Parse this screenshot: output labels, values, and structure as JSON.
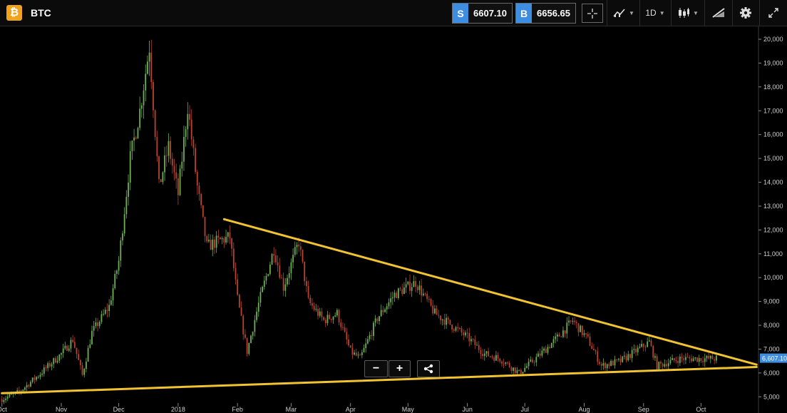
{
  "header": {
    "logo_glyph": "₿",
    "symbol": "BTC",
    "sell": {
      "tag": "S",
      "price": "6607.10"
    },
    "buy": {
      "tag": "B",
      "price": "6656.65"
    },
    "interval": "1D"
  },
  "controls": {
    "zoom_out": "−",
    "zoom_in": "+"
  },
  "colors": {
    "up": "#6fae55",
    "down": "#b8432f",
    "trendline": "#f1c232",
    "price_tag": "#3d8ee0"
  },
  "chart_data": {
    "type": "candlestick",
    "x_tick_labels": [
      "Oct",
      "Nov",
      "Dec",
      "2018",
      "Feb",
      "Mar",
      "Apr",
      "May",
      "Jun",
      "Jul",
      "Aug",
      "Sep",
      "Oct"
    ],
    "y_tick_labels": [
      "5,000",
      "6,000",
      "7,000",
      "8,000",
      "9,000",
      "10,000",
      "11,000",
      "12,000",
      "13,000",
      "14,000",
      "15,000",
      "16,000",
      "17,000",
      "18,000",
      "19,000",
      "20,000"
    ],
    "ylim": [
      4500,
      20300
    ],
    "grid": false,
    "last_price_label": "6,607.10",
    "close_series": [
      {
        "x": "2017-10-01",
        "y": 4900
      },
      {
        "x": "2017-10-10",
        "y": 5200
      },
      {
        "x": "2017-10-20",
        "y": 5900
      },
      {
        "x": "2017-11-01",
        "y": 6800
      },
      {
        "x": "2017-11-07",
        "y": 7400
      },
      {
        "x": "2017-11-12",
        "y": 5900
      },
      {
        "x": "2017-11-17",
        "y": 7700
      },
      {
        "x": "2017-11-26",
        "y": 8800
      },
      {
        "x": "2017-12-01",
        "y": 10700
      },
      {
        "x": "2017-12-07",
        "y": 15000
      },
      {
        "x": "2017-12-12",
        "y": 17000
      },
      {
        "x": "2017-12-17",
        "y": 19700
      },
      {
        "x": "2017-12-22",
        "y": 13800
      },
      {
        "x": "2017-12-27",
        "y": 15500
      },
      {
        "x": "2018-01-01",
        "y": 13500
      },
      {
        "x": "2018-01-06",
        "y": 17200
      },
      {
        "x": "2018-01-11",
        "y": 13800
      },
      {
        "x": "2018-01-16",
        "y": 11300
      },
      {
        "x": "2018-01-21",
        "y": 11500
      },
      {
        "x": "2018-01-28",
        "y": 11700
      },
      {
        "x": "2018-02-01",
        "y": 9100
      },
      {
        "x": "2018-02-06",
        "y": 6900
      },
      {
        "x": "2018-02-12",
        "y": 8900
      },
      {
        "x": "2018-02-20",
        "y": 11200
      },
      {
        "x": "2018-02-25",
        "y": 9600
      },
      {
        "x": "2018-03-05",
        "y": 11500
      },
      {
        "x": "2018-03-10",
        "y": 9000
      },
      {
        "x": "2018-03-18",
        "y": 8200
      },
      {
        "x": "2018-03-25",
        "y": 8500
      },
      {
        "x": "2018-04-01",
        "y": 6900
      },
      {
        "x": "2018-04-06",
        "y": 6600
      },
      {
        "x": "2018-04-15",
        "y": 8300
      },
      {
        "x": "2018-04-24",
        "y": 9300
      },
      {
        "x": "2018-05-05",
        "y": 9800
      },
      {
        "x": "2018-05-15",
        "y": 8500
      },
      {
        "x": "2018-05-22",
        "y": 8100
      },
      {
        "x": "2018-06-01",
        "y": 7500
      },
      {
        "x": "2018-06-10",
        "y": 6800
      },
      {
        "x": "2018-06-18",
        "y": 6600
      },
      {
        "x": "2018-06-28",
        "y": 6000
      },
      {
        "x": "2018-07-08",
        "y": 6700
      },
      {
        "x": "2018-07-17",
        "y": 7400
      },
      {
        "x": "2018-07-26",
        "y": 8200
      },
      {
        "x": "2018-08-03",
        "y": 7400
      },
      {
        "x": "2018-08-10",
        "y": 6300
      },
      {
        "x": "2018-08-20",
        "y": 6500
      },
      {
        "x": "2018-09-04",
        "y": 7300
      },
      {
        "x": "2018-09-08",
        "y": 6300
      },
      {
        "x": "2018-09-20",
        "y": 6600
      },
      {
        "x": "2018-10-01",
        "y": 6600
      },
      {
        "x": "2018-10-09",
        "y": 6607
      }
    ],
    "trendlines": [
      {
        "from": {
          "x": "2018-01-25",
          "y": 12450
        },
        "to": {
          "x": "2018-10-30",
          "y": 6350
        }
      },
      {
        "from": {
          "x": "2017-10-01",
          "y": 5150
        },
        "to": {
          "x": "2018-10-30",
          "y": 6250
        }
      }
    ]
  }
}
